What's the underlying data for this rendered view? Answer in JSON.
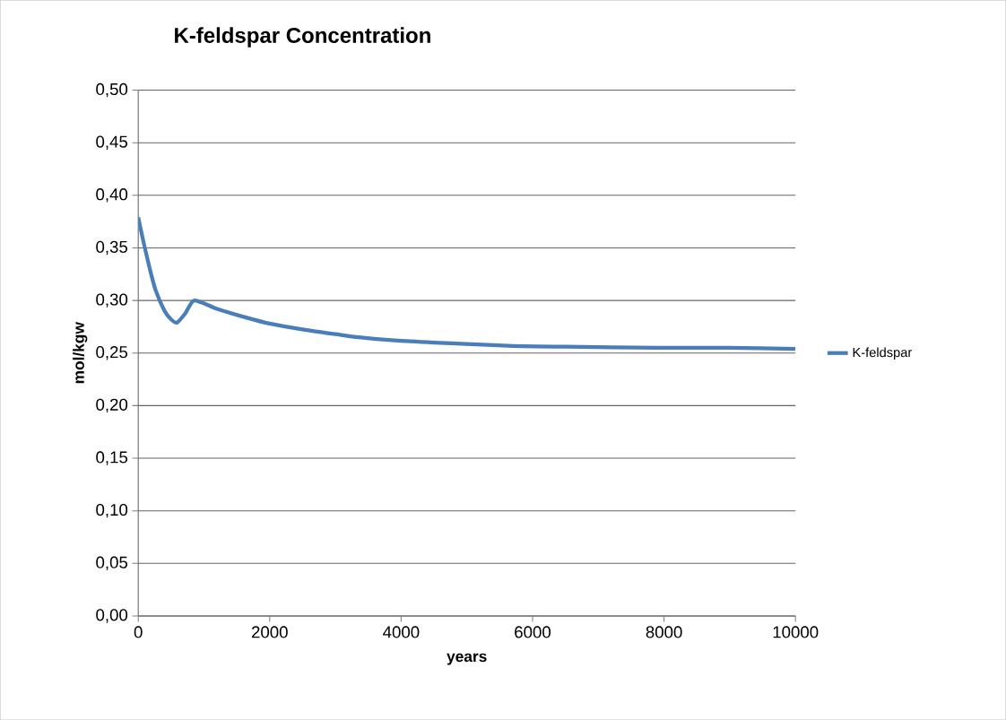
{
  "chart_data": {
    "type": "line",
    "title": "K-feldspar Concentration",
    "xlabel": "years",
    "ylabel": "mol/kgw",
    "series": [
      {
        "name": "K-feldspar",
        "color": "#4a7ebb",
        "x": [
          0,
          82,
          180,
          263,
          400,
          500,
          591,
          719,
          855,
          1200,
          1628,
          2000,
          2538,
          3000,
          3356,
          3902,
          4500,
          5630,
          6500,
          7900,
          9000,
          10000
        ],
        "values": [
          0.379,
          0.355,
          0.329,
          0.31,
          0.29,
          0.282,
          0.279,
          0.288,
          0.3,
          0.292,
          0.284,
          0.278,
          0.272,
          0.268,
          0.265,
          0.262,
          0.26,
          0.257,
          0.256,
          0.255,
          0.255,
          0.254
        ]
      }
    ],
    "xlim": [
      0,
      10000
    ],
    "xticks": [
      0,
      2000,
      4000,
      6000,
      8000,
      10000
    ],
    "ylim": [
      0,
      0.5
    ],
    "yticks": [
      {
        "value": 0,
        "label": "0,00"
      },
      {
        "value": 0.05,
        "label": "0,05"
      },
      {
        "value": 0.1,
        "label": "0,10"
      },
      {
        "value": 0.15,
        "label": "0,15"
      },
      {
        "value": 0.2,
        "label": "0,20"
      },
      {
        "value": 0.25,
        "label": "0,25"
      },
      {
        "value": 0.3,
        "label": "0,30"
      },
      {
        "value": 0.35,
        "label": "0,35"
      },
      {
        "value": 0.4,
        "label": "0,40"
      },
      {
        "value": 0.45,
        "label": "0,45"
      },
      {
        "value": 0.5,
        "label": "0,50"
      }
    ],
    "grid": "y",
    "legend": "right",
    "marker": "none",
    "line_style": "solid"
  }
}
